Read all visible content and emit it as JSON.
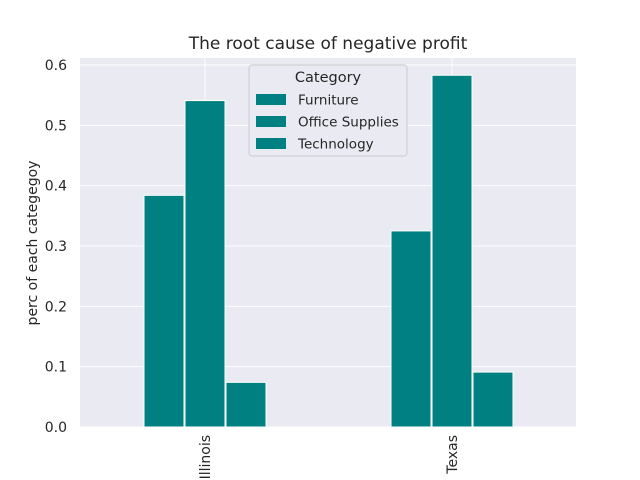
{
  "chart_data": {
    "type": "bar",
    "title": "The root cause of negative profit",
    "xlabel": "",
    "ylabel": "perc of each categegoy",
    "categories": [
      "Illinois",
      "Texas"
    ],
    "series": [
      {
        "name": "Furniture",
        "values": [
          0.384,
          0.325
        ]
      },
      {
        "name": "Office Supplies",
        "values": [
          0.541,
          0.583
        ]
      },
      {
        "name": "Technology",
        "values": [
          0.074,
          0.091
        ]
      }
    ],
    "ylim": [
      0,
      0.6
    ],
    "yticks": [
      "0.0",
      "0.1",
      "0.2",
      "0.3",
      "0.4",
      "0.5",
      "0.6"
    ],
    "grid": true,
    "legend": {
      "title": "Category",
      "placement": "upper-center"
    },
    "colors": {
      "bar": "#008080",
      "plot_background": "#eaeaf2",
      "grid": "#ffffff"
    }
  }
}
